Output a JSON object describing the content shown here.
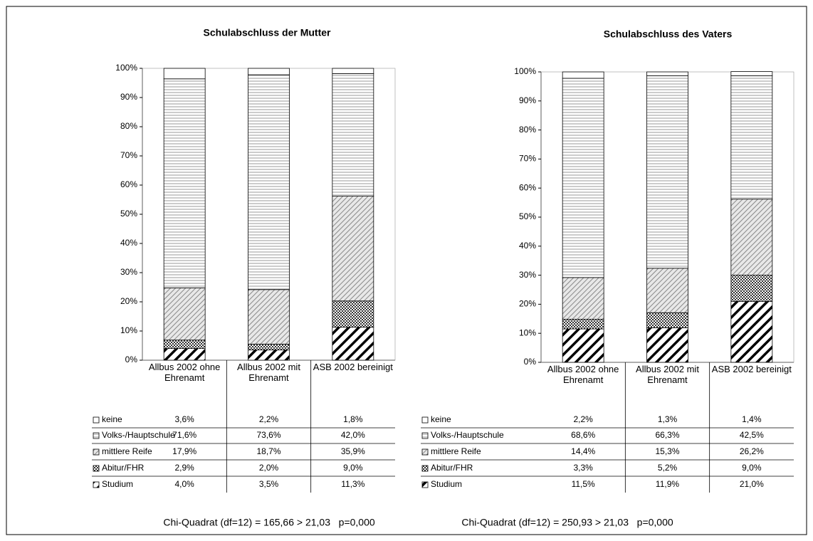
{
  "chart_data": [
    {
      "type": "stacked-bar",
      "title": "Schulabschluss der Mutter",
      "categories": [
        "Allbus 2002 ohne Ehrenamt",
        "Allbus 2002 mit Ehrenamt",
        "ASB 2002 bereinigt"
      ],
      "ylim": [
        0,
        100
      ],
      "yticks": [
        {
          "value": 0,
          "label": "0%"
        },
        {
          "value": 10,
          "label": "10%"
        },
        {
          "value": 20,
          "label": "20%"
        },
        {
          "value": 30,
          "label": "30%"
        },
        {
          "value": 40,
          "label": "40%"
        },
        {
          "value": 50,
          "label": "50%"
        },
        {
          "value": 60,
          "label": "60%"
        },
        {
          "value": 70,
          "label": "70%"
        },
        {
          "value": 80,
          "label": "80%"
        },
        {
          "value": 90,
          "label": "90%"
        },
        {
          "value": 100,
          "label": "100%"
        }
      ],
      "series": [
        {
          "name": "keine",
          "pattern": "none",
          "values": [
            3.6,
            2.2,
            1.8
          ],
          "value_labels": [
            "3,6%",
            "2,2%",
            "1,8%"
          ]
        },
        {
          "name": "Volks-/Hauptschule",
          "pattern": "horizontal",
          "values": [
            71.6,
            73.6,
            42.0
          ],
          "value_labels": [
            "71,6%",
            "73,6%",
            "42,0%"
          ]
        },
        {
          "name": "mittlere Reife",
          "pattern": "diagonal-light",
          "values": [
            17.9,
            18.7,
            35.9
          ],
          "value_labels": [
            "17,9%",
            "18,7%",
            "35,9%"
          ]
        },
        {
          "name": "Abitur/FHR",
          "pattern": "checker",
          "values": [
            2.9,
            2.0,
            9.0
          ],
          "value_labels": [
            "2,9%",
            "2,0%",
            "9,0%"
          ]
        },
        {
          "name": "Studium",
          "pattern": "diagonal-bold",
          "values": [
            4.0,
            3.5,
            11.3
          ],
          "value_labels": [
            "4,0%",
            "3,5%",
            "11,3%"
          ]
        }
      ],
      "annotation": "Chi-Quadrat (df=12) = 165,66 > 21,03   p=0,000"
    },
    {
      "type": "stacked-bar",
      "title": "Schulabschluss des Vaters",
      "categories": [
        "Allbus 2002 ohne Ehrenamt",
        "Allbus 2002 mit Ehrenamt",
        "ASB 2002 bereinigt"
      ],
      "ylim": [
        0,
        100
      ],
      "yticks": [
        {
          "value": 0,
          "label": "0%"
        },
        {
          "value": 10,
          "label": "10%"
        },
        {
          "value": 20,
          "label": "20%"
        },
        {
          "value": 30,
          "label": "30%"
        },
        {
          "value": 40,
          "label": "40%"
        },
        {
          "value": 50,
          "label": "50%"
        },
        {
          "value": 60,
          "label": "60%"
        },
        {
          "value": 70,
          "label": "70%"
        },
        {
          "value": 80,
          "label": "80%"
        },
        {
          "value": 90,
          "label": "90%"
        },
        {
          "value": 100,
          "label": "100%"
        }
      ],
      "series": [
        {
          "name": "keine",
          "pattern": "none",
          "values": [
            2.2,
            1.3,
            1.4
          ],
          "value_labels": [
            "2,2%",
            "1,3%",
            "1,4%"
          ]
        },
        {
          "name": "Volks-/Hauptschule",
          "pattern": "horizontal",
          "values": [
            68.6,
            66.3,
            42.5
          ],
          "value_labels": [
            "68,6%",
            "66,3%",
            "42,5%"
          ]
        },
        {
          "name": "mittlere Reife",
          "pattern": "diagonal-light",
          "values": [
            14.4,
            15.3,
            26.2
          ],
          "value_labels": [
            "14,4%",
            "15,3%",
            "26,2%"
          ]
        },
        {
          "name": "Abitur/FHR",
          "pattern": "checker",
          "values": [
            3.3,
            5.2,
            9.0
          ],
          "value_labels": [
            "3,3%",
            "5,2%",
            "9,0%"
          ]
        },
        {
          "name": "Studium",
          "pattern": "diagonal-bold",
          "values": [
            11.5,
            11.9,
            21.0
          ],
          "value_labels": [
            "11,5%",
            "11,9%",
            "21,0%"
          ]
        }
      ],
      "annotation": "Chi-Quadrat (df=12) = 250,93 > 21,03   p=0,000"
    }
  ]
}
